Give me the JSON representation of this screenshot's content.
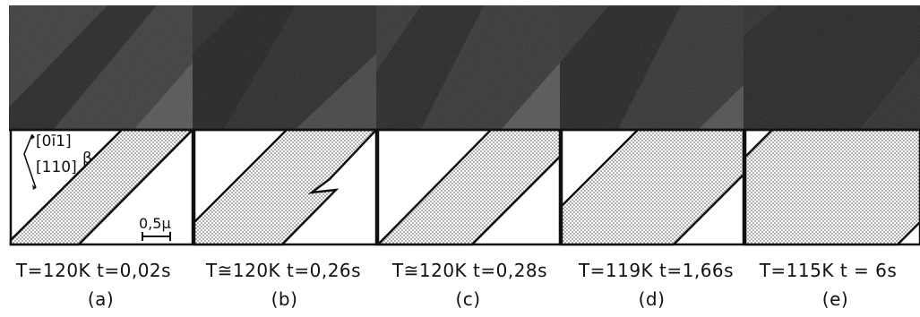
{
  "panels": [
    {
      "id": "a",
      "condition": "T=120K  t=0,02s",
      "letter": "(a)"
    },
    {
      "id": "b",
      "condition": "T≅120K  t=0,26s",
      "letter": "(b)"
    },
    {
      "id": "c",
      "condition": "T≅120K  t=0,28s",
      "letter": "(c)"
    },
    {
      "id": "d",
      "condition": "T=119K  t=1,66s",
      "letter": "(d)"
    },
    {
      "id": "e",
      "condition": "T=115K  t = 6s",
      "letter": "(e)"
    }
  ],
  "annotations": {
    "direction_top": "[0ī1]",
    "direction_bottom": "[110]",
    "phase_label": "β",
    "scale_bar": "0,5μ"
  },
  "colors": {
    "micrograph": "#3a3a3a",
    "line": "#111111",
    "dots": "#555555"
  }
}
